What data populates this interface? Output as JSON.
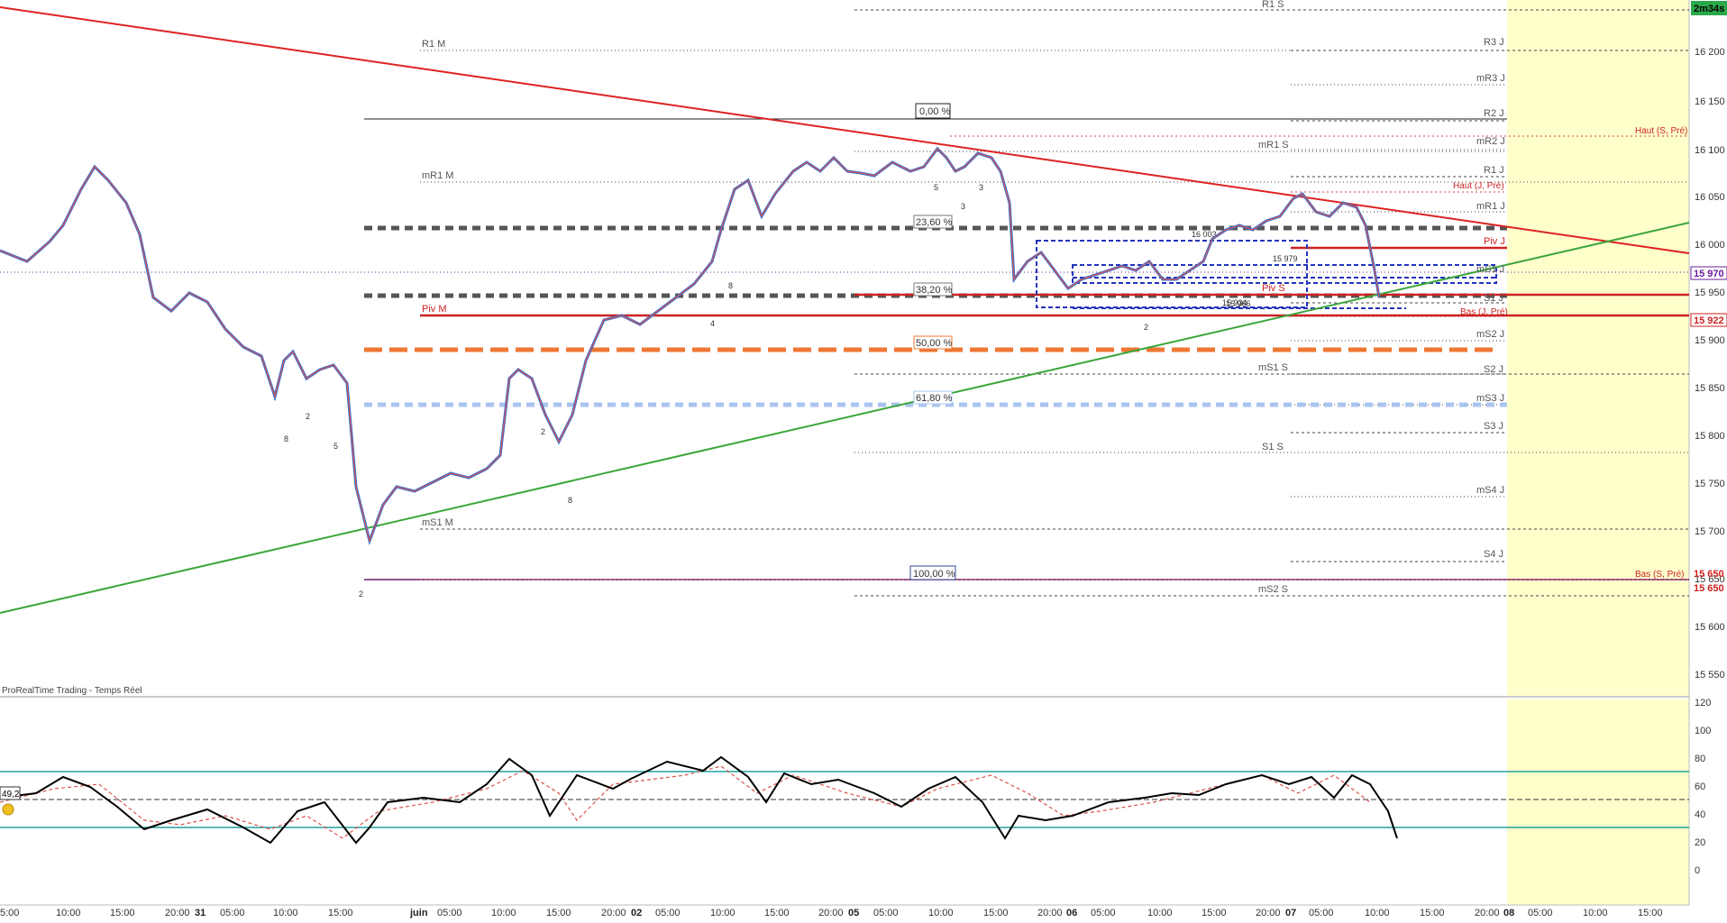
{
  "app": {
    "watermark": "ProRealTime Trading - Temps Réel"
  },
  "timer": "2m34s",
  "price_axis": {
    "ticks": [
      "16 200",
      "16 150",
      "16 100",
      "16 050",
      "16 000",
      "15 950",
      "15 900",
      "15 850",
      "15 800",
      "15 750",
      "15 700",
      "15 650",
      "15 600",
      "15 550"
    ],
    "badges": [
      {
        "label": "15 970",
        "color": "#6a1b9a"
      },
      {
        "label": "15 922",
        "color": "#cc2222"
      },
      {
        "label": "15 650",
        "color": "#cc2222"
      },
      {
        "label": "15 650",
        "color": "#cc2222"
      }
    ]
  },
  "rsi_axis": {
    "ticks": [
      "120",
      "100",
      "80",
      "60",
      "40",
      "20",
      "0"
    ],
    "current_value": "49,2"
  },
  "time_axis": [
    "5:00",
    "10:00",
    "15:00",
    "20:00",
    "31",
    "05:00",
    "10:00",
    "15:00",
    "juin",
    "05:00",
    "10:00",
    "15:00",
    "20:00",
    "02",
    "05:00",
    "10:00",
    "15:00",
    "20:00",
    "05",
    "05:00",
    "10:00",
    "15:00",
    "20:00",
    "06",
    "05:00",
    "10:00",
    "15:00",
    "20:00",
    "07",
    "05:00",
    "10:00",
    "15:00",
    "20:00",
    "08",
    "05:00",
    "10:00",
    "15:00"
  ],
  "levels": {
    "r1s": "R1 S",
    "r3j": "R3 J",
    "r1m": "R1 M",
    "mr3j": "mR3 J",
    "r2j": "R2 J",
    "mr2j": "mR2 J",
    "mr1s": "mR1 S",
    "haut_s": "Haut (S, Pré)",
    "mr1m": "mR1 M",
    "r1j": "R1 J",
    "haut_j": "Haut (J, Pré)",
    "mr1j": "mR1 J",
    "piv_j": "Piv J",
    "ms1j": "mS1 J",
    "piv_s": "Piv S",
    "s1j": "S1 J",
    "piv_m": "Piv M",
    "bas_j": "Bas (J, Pré)",
    "ms2j": "mS2 J",
    "ms1s": "mS1 S",
    "s2j": "S2 J",
    "ms3j": "mS3 J",
    "s3j": "S3 J",
    "s1s": "S1 S",
    "ms4j": "mS4 J",
    "ms1m": "mS1 M",
    "s4j": "S4 J",
    "bas_s": "Bas (S, Pré)",
    "ms2s": "mS2 S"
  },
  "fib": {
    "f0": "0,00 %",
    "f236": "23,60 %",
    "f382": "38,20 %",
    "f50": "50,00 %",
    "f618": "61,80 %",
    "f100": "100,00 %"
  },
  "box_labels": {
    "a": "16 003",
    "b": "15 979",
    "c": "15 966",
    "d": "15 934"
  },
  "signals": [
    "8",
    "2",
    "5",
    "2",
    "8",
    "8",
    "4",
    "5",
    "3",
    "3",
    "2",
    "2"
  ],
  "colors": {
    "up": "#2f6fd6",
    "down": "#d9534f",
    "pivot": "#cc2222",
    "trend_support": "#3aa63a",
    "fib50": "#ee7733",
    "rsi_band": "#22a0a0",
    "future_zone": "#ffffcc"
  }
}
